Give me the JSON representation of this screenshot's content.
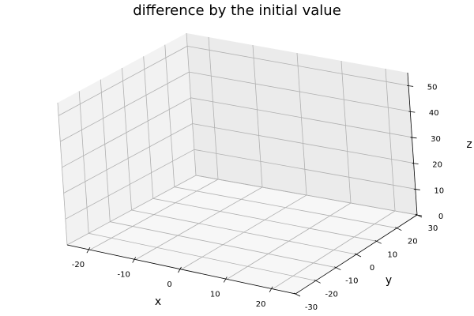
{
  "chart_data": {
    "type": "line",
    "title": "difference by the initial value",
    "xlabel": "x",
    "ylabel": "y",
    "zlabel": "z",
    "xlim": [
      -25,
      25
    ],
    "ylim": [
      -30,
      30
    ],
    "zlim": [
      0,
      55
    ],
    "x_ticks": [
      "-20",
      "-10",
      "0",
      "10",
      "20"
    ],
    "y_ticks": [
      "-30",
      "-20",
      "-10",
      "0",
      "10",
      "20",
      "30"
    ],
    "z_ticks": [
      "0",
      "10",
      "20",
      "30",
      "40",
      "50"
    ],
    "grid": true,
    "series": []
  },
  "colors": {
    "pane_left": "#f2f2f2",
    "pane_back": "#ebebeb",
    "pane_floor": "#f7f7f7",
    "grid": "#b0b0b0"
  }
}
